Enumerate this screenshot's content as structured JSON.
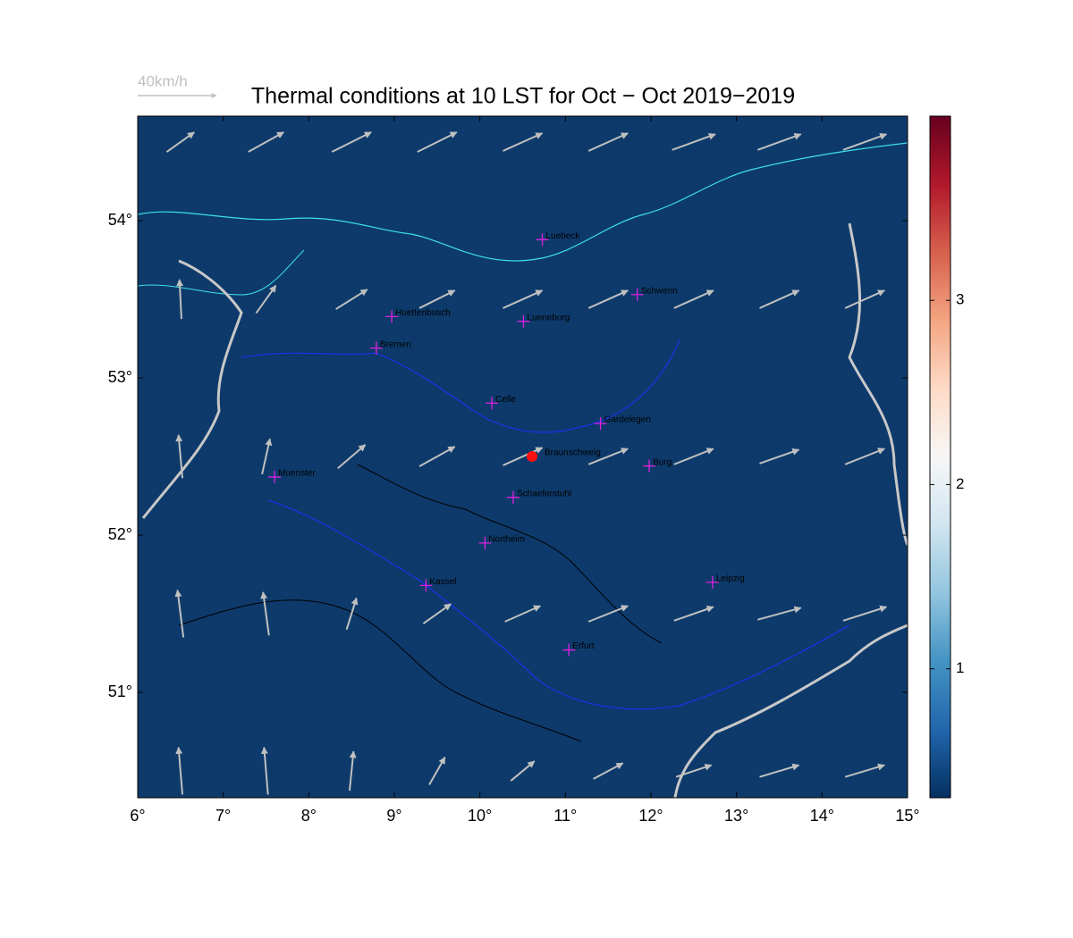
{
  "chart_data": {
    "type": "vector-map",
    "title": "Thermal conditions at 10 LST for Oct − Oct  2019−2019",
    "xlim": [
      6,
      15
    ],
    "ylim": [
      50.33,
      54.665
    ],
    "xticks": [
      {
        "value": 6,
        "label": "6°"
      },
      {
        "value": 7,
        "label": "7°"
      },
      {
        "value": 8,
        "label": "8°"
      },
      {
        "value": 9,
        "label": "9°"
      },
      {
        "value": 10,
        "label": "10°"
      },
      {
        "value": 11,
        "label": "11°"
      },
      {
        "value": 12,
        "label": "12°"
      },
      {
        "value": 13,
        "label": "13°"
      },
      {
        "value": 14,
        "label": "14°"
      },
      {
        "value": 15,
        "label": "15°"
      }
    ],
    "yticks": [
      {
        "value": 51,
        "label": "51°"
      },
      {
        "value": 52,
        "label": "52°"
      },
      {
        "value": 53,
        "label": "53°"
      },
      {
        "value": 54,
        "label": "54°"
      }
    ],
    "background_color": "#0d3a6b",
    "arrow_color": "#c0c0c0",
    "colorbar": {
      "clim": [
        0.3,
        4.0
      ],
      "ticks": [
        1,
        2,
        3
      ],
      "colormap": "RdBu_r"
    },
    "reference_arrow": {
      "value": 40,
      "label": "40km/h"
    },
    "wind": {
      "lon": [
        6.5,
        7.5,
        8.5,
        9.5,
        10.5,
        11.5,
        12.5,
        13.5,
        14.5
      ],
      "lat": [
        50.5,
        51.5,
        52.5,
        53.5,
        54.5
      ],
      "u": [
        [
          -2,
          -2,
          2,
          8,
          12,
          15,
          18,
          20,
          20
        ],
        [
          -3,
          -3,
          5,
          14,
          18,
          20,
          20,
          22,
          22
        ],
        [
          -2,
          4,
          14,
          18,
          20,
          20,
          20,
          20,
          20
        ],
        [
          -1,
          10,
          16,
          18,
          20,
          20,
          20,
          20,
          20
        ],
        [
          14,
          18,
          20,
          20,
          20,
          20,
          22,
          22,
          22
        ]
      ],
      "v": [
        [
          24,
          24,
          20,
          14,
          10,
          8,
          6,
          6,
          6
        ],
        [
          24,
          22,
          16,
          10,
          8,
          8,
          7,
          6,
          7
        ],
        [
          22,
          18,
          12,
          10,
          9,
          8,
          8,
          7,
          8
        ],
        [
          20,
          14,
          10,
          9,
          9,
          9,
          9,
          9,
          9
        ],
        [
          10,
          10,
          10,
          10,
          9,
          9,
          8,
          8,
          8
        ]
      ]
    },
    "cities": [
      {
        "name": "Luebeck",
        "lon": 10.73,
        "lat": 53.88,
        "marker": "plus"
      },
      {
        "name": "Schwerin",
        "lon": 11.84,
        "lat": 53.53,
        "marker": "plus"
      },
      {
        "name": "Huettenbusch",
        "lon": 8.97,
        "lat": 53.39,
        "marker": "plus"
      },
      {
        "name": "Lueneburg",
        "lon": 10.51,
        "lat": 53.36,
        "marker": "plus"
      },
      {
        "name": "Bremen",
        "lon": 8.79,
        "lat": 53.19,
        "marker": "plus"
      },
      {
        "name": "Celle",
        "lon": 10.14,
        "lat": 52.84,
        "marker": "plus"
      },
      {
        "name": "Gardelegen",
        "lon": 11.41,
        "lat": 52.71,
        "marker": "plus"
      },
      {
        "name": "Braunschweig",
        "lon": 10.61,
        "lat": 52.5,
        "marker": "dot"
      },
      {
        "name": "Burg",
        "lon": 11.98,
        "lat": 52.44,
        "marker": "plus"
      },
      {
        "name": "Muenster",
        "lon": 7.6,
        "lat": 52.37,
        "marker": "plus"
      },
      {
        "name": "Schaeferstuhl",
        "lon": 10.39,
        "lat": 52.24,
        "marker": "plus"
      },
      {
        "name": "Northeim",
        "lon": 10.06,
        "lat": 51.95,
        "marker": "plus"
      },
      {
        "name": "Kassel",
        "lon": 9.37,
        "lat": 51.68,
        "marker": "plus"
      },
      {
        "name": "Leipzig",
        "lon": 12.72,
        "lat": 51.7,
        "marker": "plus"
      },
      {
        "name": "Erfurt",
        "lon": 11.04,
        "lat": 51.27,
        "marker": "plus"
      }
    ]
  }
}
